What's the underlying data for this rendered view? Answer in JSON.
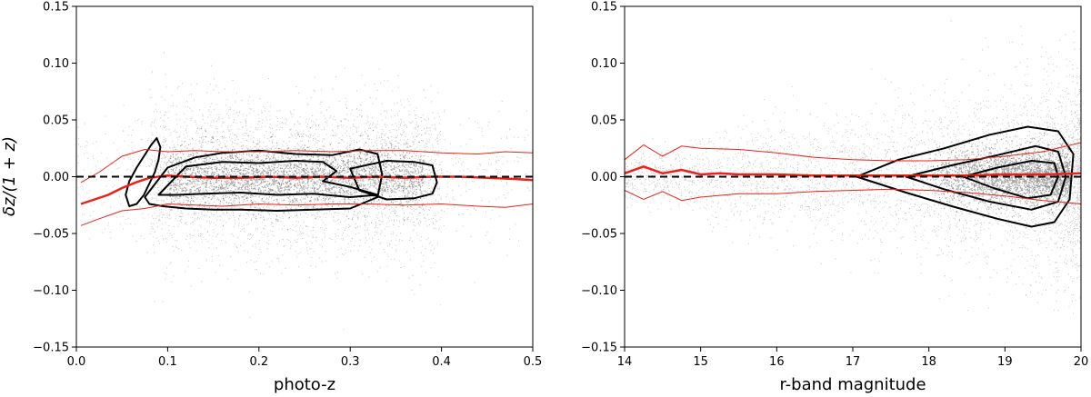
{
  "chart_data": [
    {
      "type": "scatter",
      "xlabel": "photo-z",
      "ylabel": "δz/(1 + z)",
      "xlim": [
        0.0,
        0.5
      ],
      "ylim": [
        -0.15,
        0.15
      ],
      "xticks": [
        "0.0",
        "0.1",
        "0.2",
        "0.3",
        "0.4",
        "0.5"
      ],
      "yticks": [
        "0.15",
        "0.10",
        "0.05",
        "0.00",
        "−0.05",
        "−0.10",
        "−0.15"
      ],
      "grid": false,
      "reference_line": {
        "y": 0.0,
        "style": "dashed",
        "color": "#000000"
      },
      "background_points": {
        "color": "#000000",
        "description": "dense scatter of individual galaxies"
      },
      "series": [
        {
          "role": "median",
          "color": "#e8231a",
          "x": [
            0.005,
            0.02,
            0.035,
            0.05,
            0.065,
            0.08,
            0.1,
            0.12,
            0.15,
            0.18,
            0.21,
            0.24,
            0.27,
            0.3,
            0.33,
            0.36,
            0.39,
            0.42,
            0.45,
            0.48,
            0.5
          ],
          "y": [
            -0.024,
            -0.02,
            -0.016,
            -0.01,
            -0.005,
            -0.001,
            0.001,
            0.0,
            -0.001,
            -0.001,
            0.0,
            -0.001,
            0.0,
            -0.001,
            0.0,
            -0.001,
            0.0,
            0.0,
            -0.001,
            -0.002,
            -0.003
          ]
        },
        {
          "role": "upper-bound",
          "color": "#e8231a",
          "x": [
            0.005,
            0.025,
            0.05,
            0.075,
            0.1,
            0.13,
            0.16,
            0.2,
            0.24,
            0.28,
            0.32,
            0.36,
            0.4,
            0.44,
            0.47,
            0.5
          ],
          "y": [
            -0.005,
            0.004,
            0.018,
            0.024,
            0.022,
            0.023,
            0.022,
            0.022,
            0.023,
            0.022,
            0.023,
            0.023,
            0.021,
            0.02,
            0.022,
            0.021
          ]
        },
        {
          "role": "lower-bound",
          "color": "#e8231a",
          "x": [
            0.005,
            0.025,
            0.05,
            0.075,
            0.1,
            0.13,
            0.16,
            0.2,
            0.24,
            0.28,
            0.32,
            0.36,
            0.4,
            0.44,
            0.47,
            0.5
          ],
          "y": [
            -0.043,
            -0.037,
            -0.03,
            -0.028,
            -0.024,
            -0.025,
            -0.026,
            -0.024,
            -0.025,
            -0.024,
            -0.024,
            -0.025,
            -0.024,
            -0.026,
            -0.027,
            -0.024
          ]
        }
      ],
      "contours": [
        {
          "x": [
            0.082,
            0.088,
            0.092,
            0.09,
            0.086,
            0.08,
            0.074,
            0.066,
            0.058,
            0.054,
            0.058,
            0.066,
            0.074,
            0.082
          ],
          "y": [
            0.028,
            0.034,
            0.026,
            0.015,
            0.004,
            -0.006,
            -0.016,
            -0.024,
            -0.026,
            -0.016,
            -0.004,
            0.008,
            0.018,
            0.028
          ]
        },
        {
          "x": [
            0.075,
            0.1,
            0.13,
            0.16,
            0.2,
            0.24,
            0.28,
            0.31,
            0.33,
            0.335,
            0.33,
            0.3,
            0.26,
            0.22,
            0.18,
            0.15,
            0.12,
            0.095,
            0.08,
            0.075
          ],
          "y": [
            -0.018,
            0.008,
            0.017,
            0.021,
            0.023,
            0.02,
            0.019,
            0.024,
            0.02,
            0.002,
            -0.018,
            -0.028,
            -0.029,
            -0.03,
            -0.029,
            -0.029,
            -0.028,
            -0.026,
            -0.024,
            -0.018
          ]
        },
        {
          "x": [
            0.09,
            0.12,
            0.16,
            0.2,
            0.24,
            0.27,
            0.285,
            0.27,
            0.3,
            0.33,
            0.3,
            0.26,
            0.22,
            0.18,
            0.14,
            0.11,
            0.09
          ],
          "y": [
            -0.016,
            0.009,
            0.013,
            0.012,
            0.014,
            0.013,
            0.005,
            -0.004,
            -0.009,
            -0.016,
            -0.018,
            -0.015,
            -0.016,
            -0.014,
            -0.015,
            -0.016,
            -0.016
          ]
        },
        {
          "x": [
            0.3,
            0.34,
            0.37,
            0.39,
            0.395,
            0.39,
            0.37,
            0.34,
            0.31,
            0.3
          ],
          "y": [
            0.007,
            0.014,
            0.013,
            0.01,
            -0.005,
            -0.015,
            -0.019,
            -0.02,
            -0.012,
            0.007
          ]
        }
      ]
    },
    {
      "type": "scatter",
      "xlabel": "r-band magnitude",
      "ylabel": "",
      "xlim": [
        14,
        20
      ],
      "ylim": [
        -0.15,
        0.15
      ],
      "xticks": [
        "14",
        "15",
        "16",
        "17",
        "18",
        "19",
        "20"
      ],
      "yticks": [
        "0.15",
        "0.10",
        "0.05",
        "0.00",
        "−0.05",
        "−0.10",
        "−0.15"
      ],
      "grid": false,
      "reference_line": {
        "y": 0.0,
        "style": "dashed",
        "color": "#000000"
      },
      "background_points": {
        "color": "#000000",
        "description": "dense scatter of individual galaxies"
      },
      "series": [
        {
          "role": "median",
          "color": "#e8231a",
          "x": [
            14.0,
            14.25,
            14.5,
            14.75,
            15.0,
            15.25,
            15.5,
            16.0,
            16.5,
            17.0,
            17.5,
            18.0,
            18.5,
            19.0,
            19.5,
            20.0
          ],
          "y": [
            0.003,
            0.009,
            0.003,
            0.006,
            0.002,
            0.003,
            0.002,
            0.002,
            0.001,
            0.001,
            0.001,
            0.001,
            0.001,
            0.002,
            0.002,
            0.003
          ]
        },
        {
          "role": "upper-bound",
          "color": "#e8231a",
          "x": [
            14.0,
            14.25,
            14.5,
            14.75,
            15.0,
            15.5,
            16.0,
            16.5,
            17.0,
            17.5,
            18.0,
            18.5,
            19.0,
            19.5,
            20.0
          ],
          "y": [
            0.015,
            0.028,
            0.018,
            0.027,
            0.025,
            0.024,
            0.021,
            0.017,
            0.015,
            0.014,
            0.014,
            0.015,
            0.018,
            0.022,
            0.03
          ]
        },
        {
          "role": "lower-bound",
          "color": "#e8231a",
          "x": [
            14.0,
            14.25,
            14.5,
            14.75,
            15.0,
            15.5,
            16.0,
            16.5,
            17.0,
            17.5,
            18.0,
            18.5,
            19.0,
            19.5,
            20.0
          ],
          "y": [
            -0.012,
            -0.02,
            -0.013,
            -0.021,
            -0.018,
            -0.015,
            -0.015,
            -0.013,
            -0.012,
            -0.011,
            -0.012,
            -0.014,
            -0.017,
            -0.021,
            -0.024
          ]
        }
      ],
      "contours": [
        {
          "x": [
            17.05,
            17.6,
            18.2,
            18.8,
            19.3,
            19.7,
            19.9,
            19.85,
            19.65,
            19.35,
            18.9,
            18.3,
            17.7,
            17.05
          ],
          "y": [
            0.0,
            0.015,
            0.025,
            0.037,
            0.044,
            0.04,
            0.02,
            -0.02,
            -0.04,
            -0.044,
            -0.037,
            -0.026,
            -0.014,
            0.0
          ]
        },
        {
          "x": [
            17.7,
            18.3,
            18.9,
            19.4,
            19.7,
            19.8,
            19.7,
            19.35,
            18.8,
            18.2,
            17.7
          ],
          "y": [
            0.0,
            0.01,
            0.019,
            0.027,
            0.022,
            0.0,
            -0.022,
            -0.029,
            -0.022,
            -0.011,
            0.0
          ]
        },
        {
          "x": [
            18.45,
            18.9,
            19.35,
            19.65,
            19.7,
            19.6,
            19.3,
            18.85,
            18.45
          ],
          "y": [
            0.0,
            0.008,
            0.014,
            0.012,
            0.0,
            -0.016,
            -0.019,
            -0.01,
            0.0
          ]
        }
      ]
    }
  ]
}
